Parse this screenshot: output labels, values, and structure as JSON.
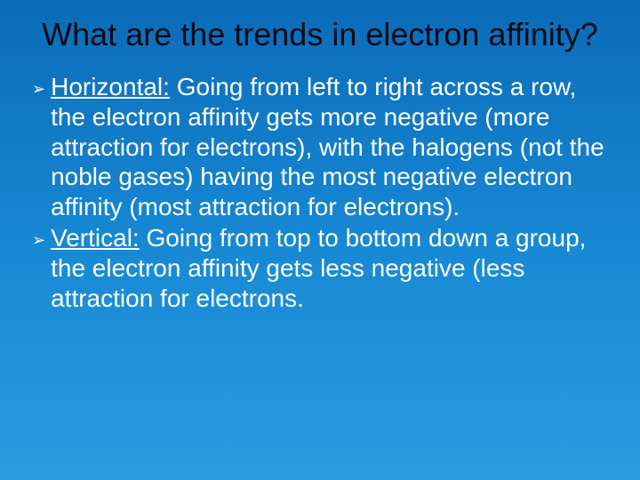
{
  "background_gradient": [
    "#0a6bb8",
    "#1788d4",
    "#2a9de0"
  ],
  "title": {
    "text": "What are the trends in electron affinity?",
    "color": "#0a0a14",
    "fontsize": 36
  },
  "bullet_icon": "➢",
  "bullet_color": "#ffffff",
  "text_color": "#ffffff",
  "text_fontsize": 28,
  "bullets": [
    {
      "label": "Horizontal:",
      "body": "  Going from left to right across a row, the electron affinity gets more negative (more attraction for electrons), with the halogens (not the noble gases) having the most negative electron affinity (most attraction for electrons)."
    },
    {
      "label": "Vertical:",
      "body": "  Going from top to bottom down a group, the electron affinity gets less negative (less attraction for electrons."
    }
  ]
}
